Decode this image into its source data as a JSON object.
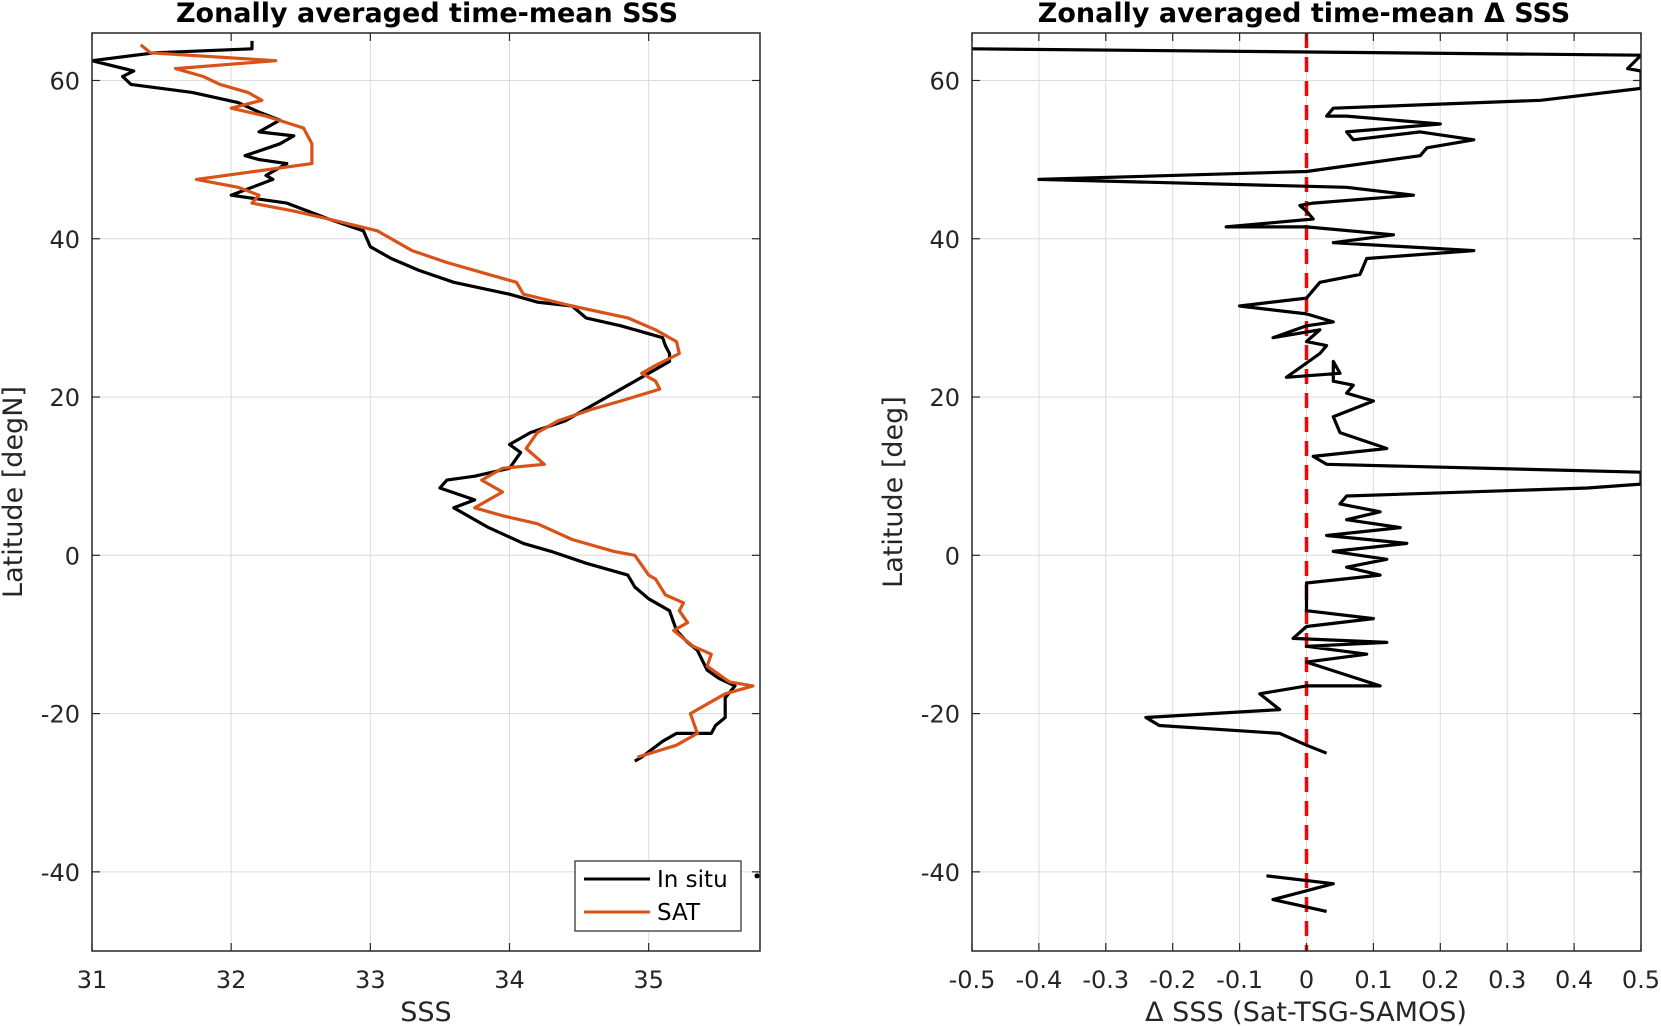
{
  "chart_data": [
    {
      "type": "line",
      "title": "Zonally averaged time-mean SSS",
      "xlabel": "SSS",
      "ylabel": "Latitude [degN]",
      "xlim": [
        31,
        35.8
      ],
      "ylim": [
        -50,
        66
      ],
      "xticks": [
        31,
        32,
        33,
        34,
        35
      ],
      "yticks": [
        -40,
        -20,
        0,
        20,
        40,
        60
      ],
      "xtick_labels": [
        "31",
        "32",
        "33",
        "34",
        "35"
      ],
      "ytick_labels": [
        "-40",
        "-20",
        "0",
        "20",
        "40",
        "60"
      ],
      "grid": true,
      "legend_position": "bottom-right",
      "series": [
        {
          "name": "In situ",
          "color": "#000000",
          "x": [
            32.15,
            32.15,
            31.45,
            31.0,
            31.3,
            31.22,
            31.28,
            31.72,
            32.05,
            32.2,
            32.35,
            32.2,
            32.45,
            32.35,
            32.1,
            32.2,
            32.4,
            32.25,
            32.3,
            32.0,
            32.4,
            32.7,
            32.95,
            33.0,
            33.15,
            33.35,
            33.6,
            34.0,
            34.2,
            34.45,
            34.55,
            34.8,
            35.1,
            35.12,
            35.15,
            35.15,
            35.0,
            34.85,
            34.65,
            34.55,
            34.4,
            34.15,
            34.0,
            34.08,
            34.0,
            33.75,
            33.55,
            33.5,
            33.75,
            33.6,
            33.85,
            34.1,
            34.3,
            34.55,
            34.85,
            34.9,
            35.0,
            35.15,
            35.2,
            35.28,
            35.35,
            35.42,
            35.5,
            35.62,
            35.55,
            35.55,
            35.48,
            35.45,
            35.2,
            35.1,
            34.95,
            34.9
          ],
          "y": [
            65,
            64,
            63.5,
            62.5,
            61.2,
            60.5,
            59.5,
            58.5,
            57.2,
            56,
            55,
            53.5,
            53,
            52,
            50.5,
            50,
            49.5,
            48,
            47.5,
            45.5,
            44.5,
            42.5,
            41,
            39,
            37.5,
            36,
            34.5,
            33,
            32,
            31.5,
            30,
            29,
            27.5,
            26.5,
            25.5,
            24.5,
            23,
            21.5,
            19.5,
            18.5,
            17,
            15.5,
            14,
            13,
            11,
            10,
            9.5,
            8.5,
            7,
            6,
            3.5,
            1.5,
            0.5,
            -1,
            -2.5,
            -4,
            -5.5,
            -7,
            -9.5,
            -11,
            -12,
            -14.5,
            -15.5,
            -16.5,
            -18,
            -20.5,
            -21.5,
            -22.5,
            -22.5,
            -23.5,
            -25.5,
            -26
          ],
          "outlier_points": [
            {
              "x": 35.8,
              "y": -40.5
            }
          ]
        },
        {
          "name": "SAT",
          "color": "#d95319",
          "x": [
            31.35,
            31.42,
            32.32,
            31.6,
            31.8,
            31.92,
            32.12,
            32.22,
            32.0,
            32.25,
            32.52,
            32.58,
            32.58,
            31.75,
            32.05,
            32.2,
            32.15,
            32.45,
            32.7,
            33.05,
            33.2,
            33.3,
            33.55,
            33.85,
            34.05,
            34.1,
            34.45,
            34.85,
            35.05,
            35.2,
            35.22,
            35.05,
            34.95,
            35.05,
            35.08,
            34.8,
            34.6,
            34.35,
            34.2,
            34.12,
            34.25,
            33.95,
            33.8,
            33.95,
            33.75,
            33.95,
            34.2,
            34.45,
            34.75,
            34.9,
            35.0,
            35.05,
            35.12,
            35.25,
            35.22,
            35.28,
            35.18,
            35.32,
            35.45,
            35.42,
            35.58,
            35.75,
            35.55,
            35.45,
            35.3,
            35.35,
            35.2,
            35.05,
            34.92
          ],
          "y": [
            64.5,
            63.5,
            62.5,
            61.5,
            60.5,
            59.5,
            58.5,
            57.5,
            56.5,
            55.5,
            54,
            52,
            49.5,
            47.5,
            46.5,
            45.5,
            44.5,
            43.5,
            42.5,
            41,
            39.5,
            38.5,
            37,
            35.5,
            34.5,
            33,
            31.5,
            30,
            28.5,
            27,
            25.5,
            24,
            23,
            22,
            21,
            19.5,
            18.5,
            17,
            15.5,
            13.5,
            11.5,
            11,
            9.5,
            8,
            6,
            5,
            4,
            2,
            0.5,
            0,
            -2.5,
            -3,
            -5,
            -6,
            -7,
            -8.5,
            -9.5,
            -11.5,
            -12.5,
            -14,
            -16,
            -16.5,
            -17.5,
            -18.5,
            -20,
            -22.5,
            -24,
            -24.8,
            -25.5
          ]
        }
      ]
    },
    {
      "type": "line",
      "title": "Zonally averaged time-mean Δ SSS",
      "xlabel": "Δ SSS (Sat-TSG-SAMOS)",
      "ylabel": "Latitude [deg]",
      "xlim": [
        -0.5,
        0.5
      ],
      "ylim": [
        -50,
        66
      ],
      "xticks": [
        -0.5,
        -0.4,
        -0.3,
        -0.2,
        -0.1,
        0,
        0.1,
        0.2,
        0.3,
        0.4,
        0.5
      ],
      "yticks": [
        -40,
        -20,
        0,
        20,
        40,
        60
      ],
      "xtick_labels": [
        "-0.5",
        "-0.4",
        "-0.3",
        "-0.2",
        "-0.1",
        "0",
        "0.1",
        "0.2",
        "0.3",
        "0.4",
        "0.5"
      ],
      "ytick_labels": [
        "-40",
        "-20",
        "0",
        "20",
        "40",
        "60"
      ],
      "grid": true,
      "reference_line": {
        "x": 0,
        "color": "#ff0000",
        "style": "dashed"
      },
      "series": [
        {
          "name": "",
          "color": "#000000",
          "x": [
            -0.5,
            0.5,
            0.48,
            0.5,
            0.5,
            0.35,
            0.04,
            0.03,
            0.06,
            0.2,
            0.06,
            0.07,
            0.17,
            0.25,
            0.18,
            0.17,
            0.0,
            -0.4,
            0.06,
            0.16,
            0.01,
            -0.01,
            0.0,
            0.01,
            -0.12,
            0.0,
            0.13,
            0.04,
            0.25,
            0.09,
            0.08,
            0.02,
            0.01,
            0.0,
            -0.1,
            0.0,
            0.04,
            0.0,
            -0.05,
            0.02,
            0.0,
            0.03,
            0.02,
            -0.03,
            0.05,
            0.04,
            0.04,
            0.07,
            0.06,
            0.1,
            0.04,
            0.05,
            0.12,
            0.01,
            0.03,
            0.5,
            0.5,
            0.42,
            0.06,
            0.05,
            0.11,
            0.06,
            0.14,
            0.03,
            0.15,
            0.04,
            0.12,
            0.06,
            0.11,
            0.0,
            0.0,
            0.1,
            0.0,
            -0.02,
            0.12,
            0.0,
            0.09,
            0.0,
            0.11,
            0.0,
            -0.07,
            -0.04,
            -0.24,
            -0.22,
            -0.04,
            0.0,
            0.03
          ],
          "y": [
            64,
            63.2,
            61.5,
            61.2,
            59,
            57.5,
            56.5,
            55.5,
            55.5,
            54.5,
            53.5,
            52.5,
            53.5,
            52.5,
            51.5,
            50.5,
            48.5,
            47.5,
            46.5,
            45.5,
            44.5,
            44.2,
            43.5,
            42.5,
            41.5,
            41.5,
            40.5,
            39.5,
            38.5,
            37.5,
            35.5,
            34.5,
            33.5,
            32.5,
            31.5,
            30.5,
            29.5,
            29.0,
            27.5,
            28.5,
            27.0,
            26.5,
            25.5,
            22.5,
            23.0,
            24.5,
            22.0,
            21.5,
            20.5,
            19.5,
            17.5,
            15.5,
            13.5,
            12.5,
            11.5,
            10.5,
            9.0,
            8.5,
            7.5,
            6.5,
            5.5,
            4.5,
            3.5,
            2.5,
            1.5,
            0.5,
            -0.5,
            -1.5,
            -2.5,
            -3.5,
            -7.0,
            -8.0,
            -9.0,
            -10.5,
            -11.0,
            -11.5,
            -12.5,
            -13.5,
            -16.5,
            -16.5,
            -17.5,
            -19.5,
            -20.5,
            -21.5,
            -22.5,
            -24.0,
            -25.0
          ]
        },
        {
          "name": "",
          "color": "#000000",
          "x": [
            -0.06,
            0.04,
            -0.05,
            0.03
          ],
          "y": [
            -40.5,
            -41.5,
            -43.5,
            -45.0
          ]
        }
      ]
    }
  ],
  "legend": {
    "items": [
      {
        "label": "In situ",
        "color": "#000000"
      },
      {
        "label": "SAT",
        "color": "#d95319"
      }
    ]
  }
}
